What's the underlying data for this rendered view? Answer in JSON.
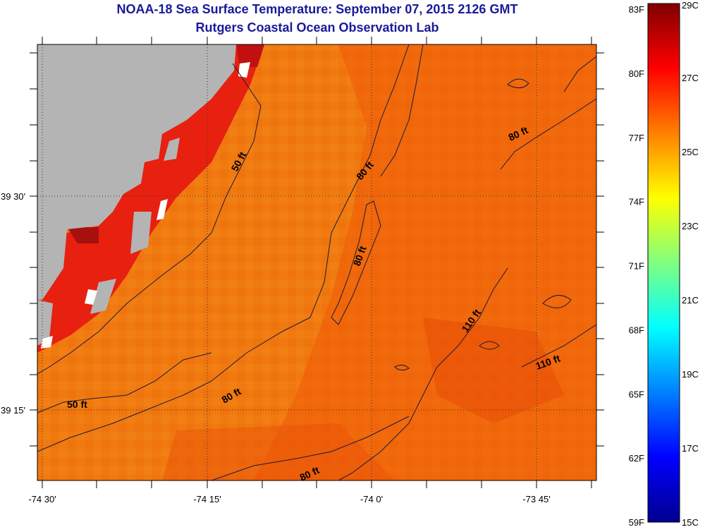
{
  "title": {
    "line1": "NOAA-18 Sea Surface Temperature:  September 07, 2015 2126 GMT",
    "line2": "Rutgers Coastal Ocean Observation Lab"
  },
  "map": {
    "colors": {
      "land": "#b4b4b4",
      "ocean_base": "#f07a10",
      "ocean_warm": "#f05a08",
      "coastal_hot": "#e82010",
      "coastal_dark": "#a81010",
      "nodata": "#ffffff"
    },
    "lat_ticks": [
      "39 30'",
      "39 15'"
    ],
    "lon_ticks": [
      "-74 30'",
      "-74 15'",
      "-74 0'",
      "-73 45'"
    ],
    "contour_labels": [
      {
        "id": "c50a",
        "text": "50 ft"
      },
      {
        "id": "c50b",
        "text": "50 ft"
      },
      {
        "id": "c80a",
        "text": "80 ft"
      },
      {
        "id": "c80b",
        "text": "80 ft"
      },
      {
        "id": "c80c",
        "text": "80 ft"
      },
      {
        "id": "c80d",
        "text": "80 ft"
      },
      {
        "id": "c80e",
        "text": "80 ft"
      },
      {
        "id": "c110a",
        "text": "110 ft"
      },
      {
        "id": "c110b",
        "text": "110 ft"
      }
    ]
  },
  "colorbar": {
    "fahrenheit": [
      "83F",
      "80F",
      "77F",
      "74F",
      "71F",
      "68F",
      "65F",
      "62F",
      "59F"
    ],
    "celsius": [
      "29C",
      "27C",
      "25C",
      "23C",
      "21C",
      "19C",
      "17C",
      "15C"
    ],
    "range_c": [
      15,
      29
    ],
    "colors": [
      "#00008f",
      "#0000ff",
      "#0080ff",
      "#00ffff",
      "#80ff80",
      "#ffff00",
      "#ff8000",
      "#ff0000",
      "#800000"
    ]
  }
}
